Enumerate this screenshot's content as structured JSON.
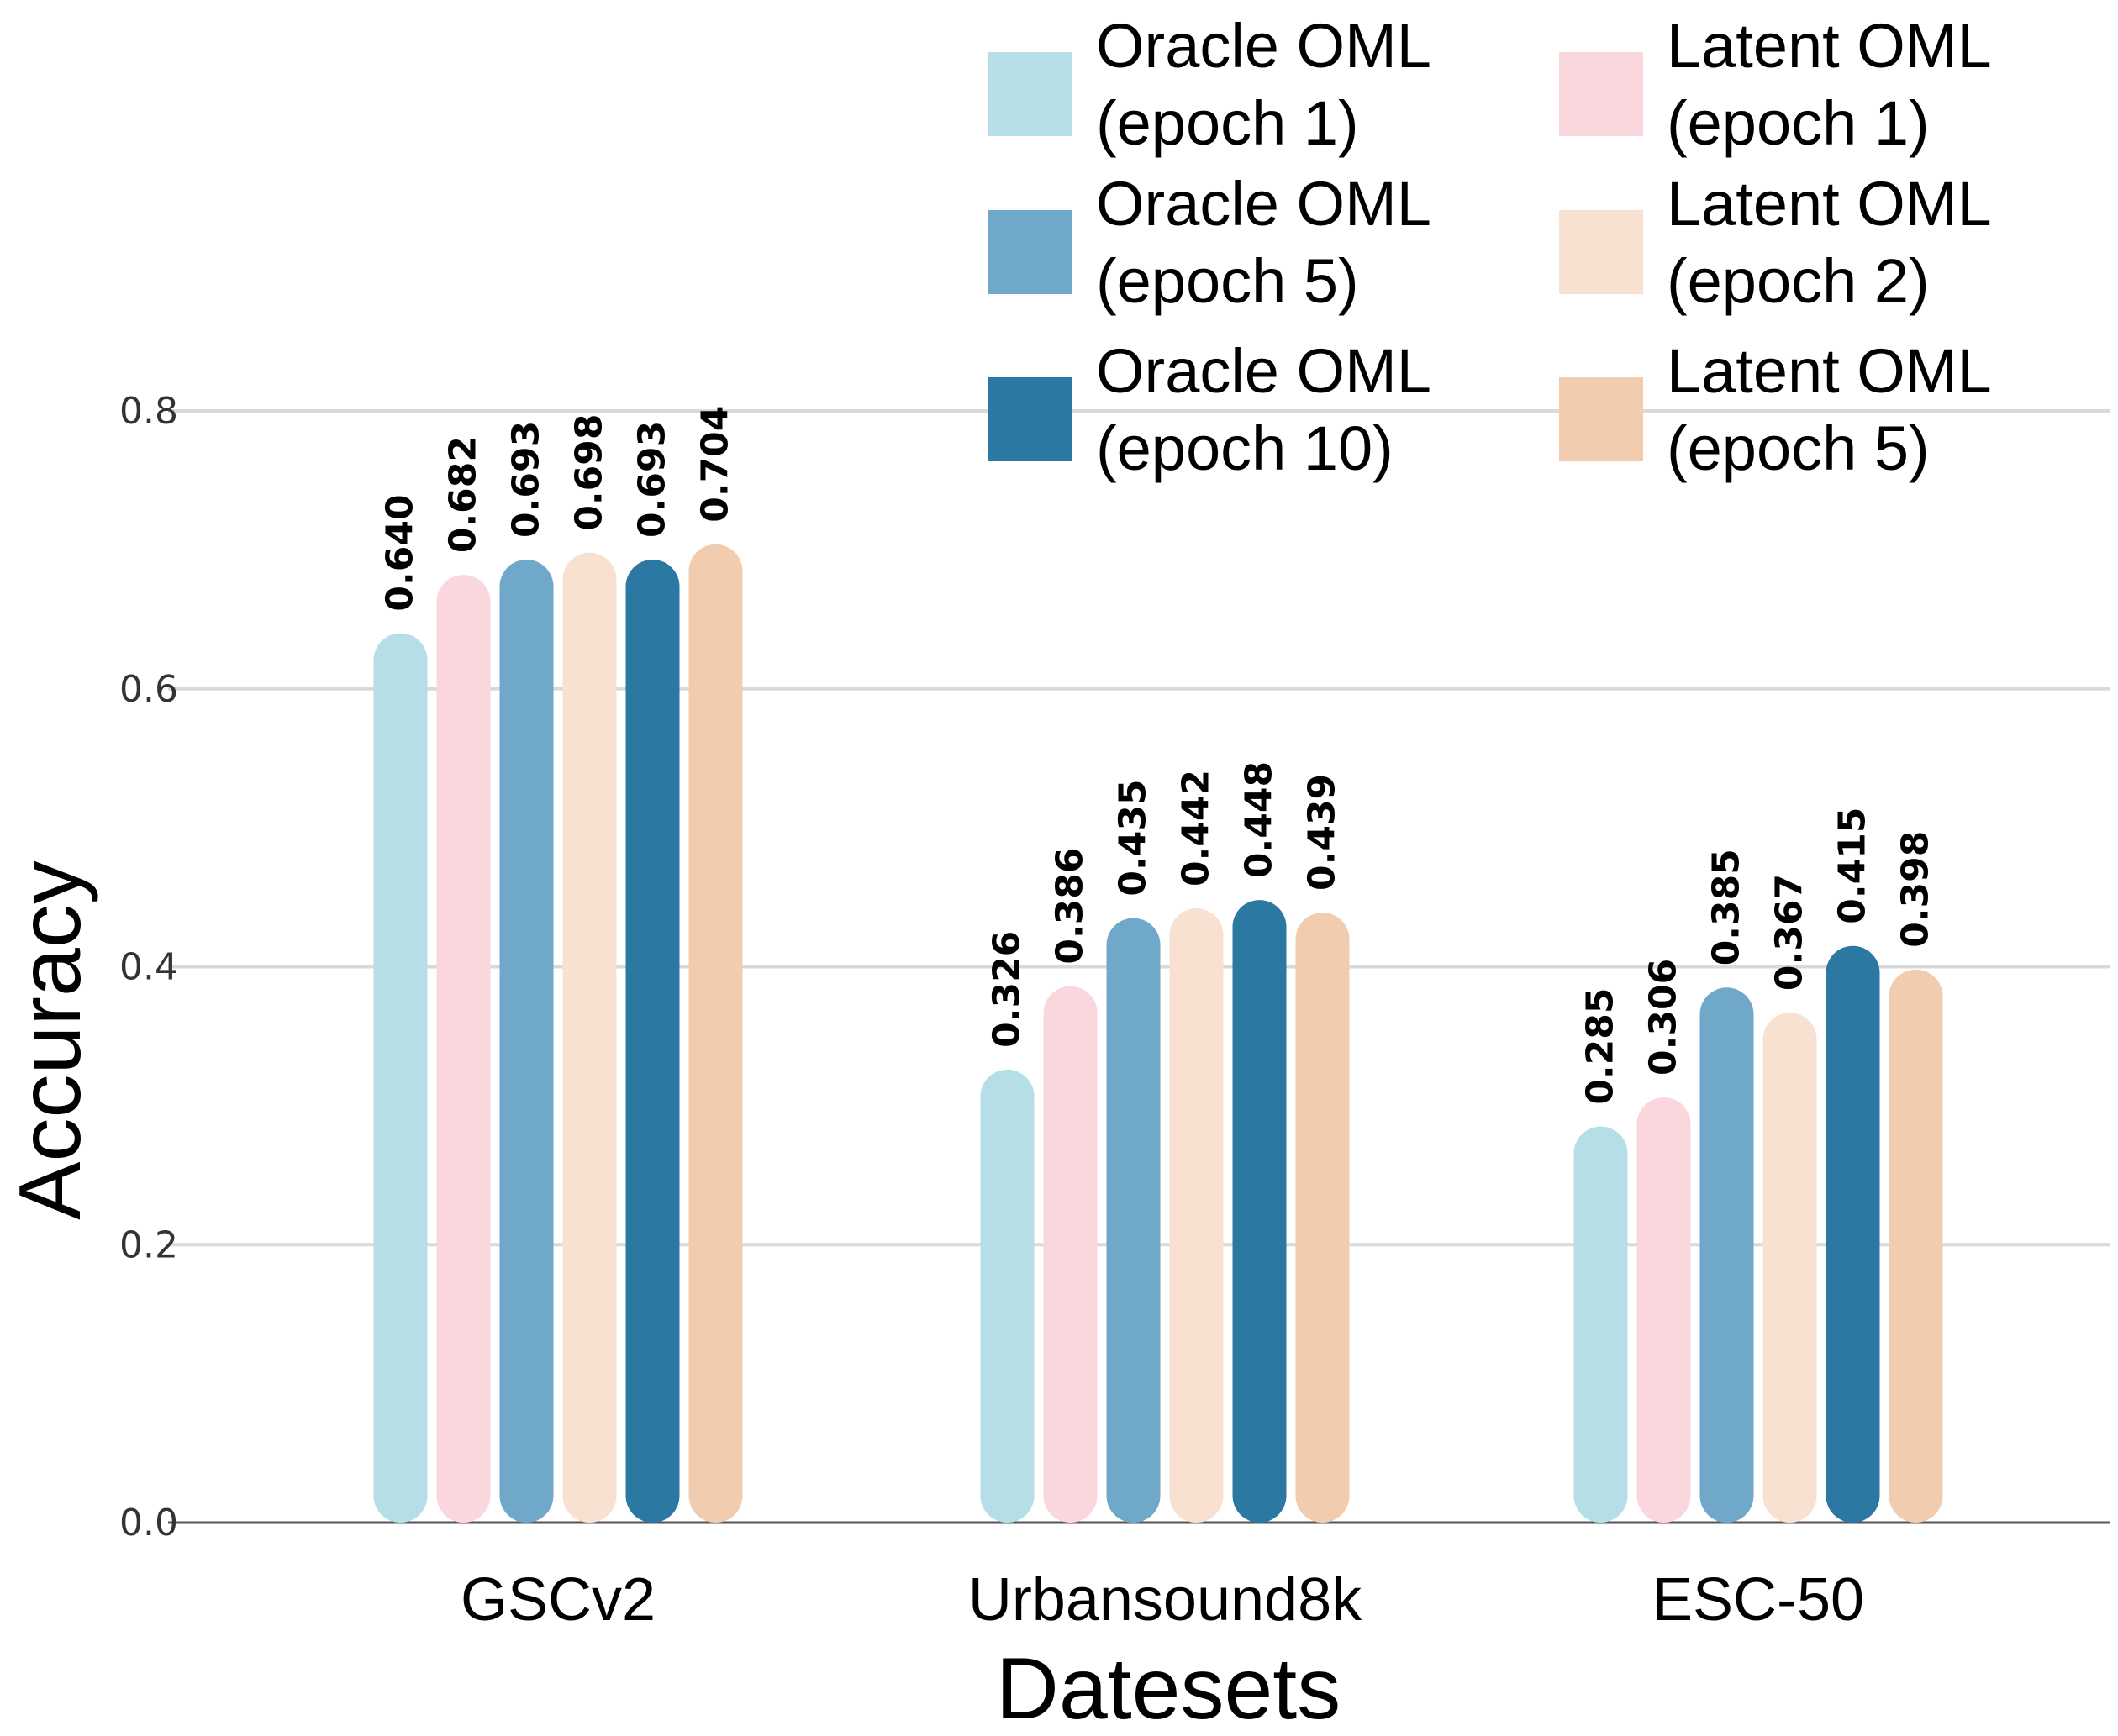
{
  "chart_data": {
    "type": "bar",
    "xlabel": "Datesets",
    "ylabel": "Accuracy",
    "ylim": [
      0,
      0.85
    ],
    "yticks": [
      "0.0",
      "0.2",
      "0.4",
      "0.6",
      "0.8"
    ],
    "grid": "horizontal",
    "legend_position": "top-right",
    "categories": [
      "GSCv2",
      "Urbansound8k",
      "ESC-50"
    ],
    "series": [
      {
        "name": [
          "Oracle OML",
          "(epoch 1)"
        ],
        "color": "#b6dee6",
        "values": [
          0.64,
          0.326,
          0.285
        ],
        "labels": [
          "0.640",
          "0.326",
          "0.285"
        ]
      },
      {
        "name": [
          "Latent OML",
          "(epoch 1)"
        ],
        "color": "#f9d7dd",
        "values": [
          0.682,
          0.386,
          0.306
        ],
        "labels": [
          "0.682",
          "0.386",
          "0.306"
        ]
      },
      {
        "name": [
          "Oracle OML",
          "(epoch 5)"
        ],
        "color": "#6fa8c9",
        "values": [
          0.693,
          0.435,
          0.385
        ],
        "labels": [
          "0.693",
          "0.435",
          "0.385"
        ]
      },
      {
        "name": [
          "Latent OML",
          "(epoch 2)"
        ],
        "color": "#f9e1d2",
        "values": [
          0.698,
          0.442,
          0.367
        ],
        "labels": [
          "0.698",
          "0.442",
          "0.367"
        ]
      },
      {
        "name": [
          "Oracle OML",
          "(epoch 10)"
        ],
        "color": "#2b78a2",
        "values": [
          0.693,
          0.448,
          0.415
        ],
        "labels": [
          "0.693",
          "0.448",
          "0.415"
        ]
      },
      {
        "name": [
          "Latent OML",
          "(epoch 5)"
        ],
        "color": "#f2ccae",
        "values": [
          0.704,
          0.439,
          0.398
        ],
        "labels": [
          "0.704",
          "0.439",
          "0.398"
        ]
      }
    ]
  }
}
